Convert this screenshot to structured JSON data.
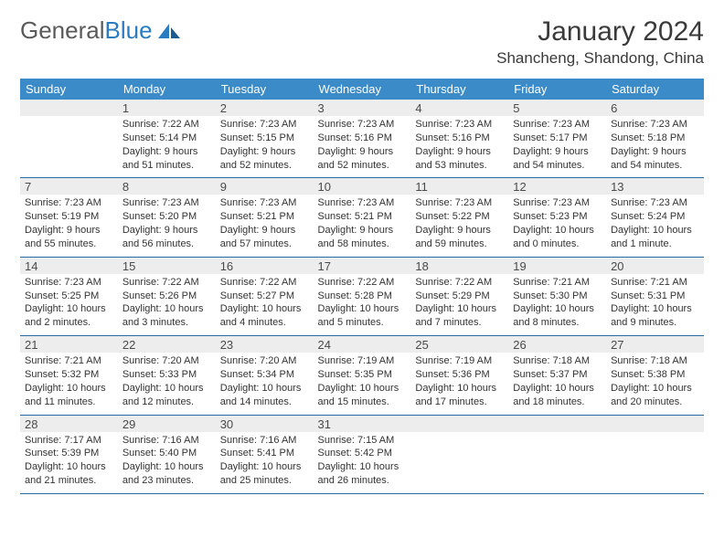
{
  "logo": {
    "text1": "General",
    "text2": "Blue"
  },
  "title": "January 2024",
  "location": "Shancheng, Shandong, China",
  "weekdays": [
    "Sunday",
    "Monday",
    "Tuesday",
    "Wednesday",
    "Thursday",
    "Friday",
    "Saturday"
  ],
  "colors": {
    "header_bg": "#3b8bc8",
    "header_text": "#ffffff",
    "daynum_bg": "#ededed",
    "row_border": "#2a6aa0",
    "logo_gray": "#5a5a5a",
    "logo_blue": "#2a7bbf",
    "text": "#333333"
  },
  "typography": {
    "title_fontsize": 30,
    "location_fontsize": 17,
    "weekday_fontsize": 13,
    "daynum_fontsize": 13,
    "content_fontsize": 11
  },
  "layout": {
    "leading_blanks": 1,
    "columns": 7
  },
  "days": [
    {
      "n": "1",
      "sr": "7:22 AM",
      "ss": "5:14 PM",
      "dl": "9 hours and 51 minutes."
    },
    {
      "n": "2",
      "sr": "7:23 AM",
      "ss": "5:15 PM",
      "dl": "9 hours and 52 minutes."
    },
    {
      "n": "3",
      "sr": "7:23 AM",
      "ss": "5:16 PM",
      "dl": "9 hours and 52 minutes."
    },
    {
      "n": "4",
      "sr": "7:23 AM",
      "ss": "5:16 PM",
      "dl": "9 hours and 53 minutes."
    },
    {
      "n": "5",
      "sr": "7:23 AM",
      "ss": "5:17 PM",
      "dl": "9 hours and 54 minutes."
    },
    {
      "n": "6",
      "sr": "7:23 AM",
      "ss": "5:18 PM",
      "dl": "9 hours and 54 minutes."
    },
    {
      "n": "7",
      "sr": "7:23 AM",
      "ss": "5:19 PM",
      "dl": "9 hours and 55 minutes."
    },
    {
      "n": "8",
      "sr": "7:23 AM",
      "ss": "5:20 PM",
      "dl": "9 hours and 56 minutes."
    },
    {
      "n": "9",
      "sr": "7:23 AM",
      "ss": "5:21 PM",
      "dl": "9 hours and 57 minutes."
    },
    {
      "n": "10",
      "sr": "7:23 AM",
      "ss": "5:21 PM",
      "dl": "9 hours and 58 minutes."
    },
    {
      "n": "11",
      "sr": "7:23 AM",
      "ss": "5:22 PM",
      "dl": "9 hours and 59 minutes."
    },
    {
      "n": "12",
      "sr": "7:23 AM",
      "ss": "5:23 PM",
      "dl": "10 hours and 0 minutes."
    },
    {
      "n": "13",
      "sr": "7:23 AM",
      "ss": "5:24 PM",
      "dl": "10 hours and 1 minute."
    },
    {
      "n": "14",
      "sr": "7:23 AM",
      "ss": "5:25 PM",
      "dl": "10 hours and 2 minutes."
    },
    {
      "n": "15",
      "sr": "7:22 AM",
      "ss": "5:26 PM",
      "dl": "10 hours and 3 minutes."
    },
    {
      "n": "16",
      "sr": "7:22 AM",
      "ss": "5:27 PM",
      "dl": "10 hours and 4 minutes."
    },
    {
      "n": "17",
      "sr": "7:22 AM",
      "ss": "5:28 PM",
      "dl": "10 hours and 5 minutes."
    },
    {
      "n": "18",
      "sr": "7:22 AM",
      "ss": "5:29 PM",
      "dl": "10 hours and 7 minutes."
    },
    {
      "n": "19",
      "sr": "7:21 AM",
      "ss": "5:30 PM",
      "dl": "10 hours and 8 minutes."
    },
    {
      "n": "20",
      "sr": "7:21 AM",
      "ss": "5:31 PM",
      "dl": "10 hours and 9 minutes."
    },
    {
      "n": "21",
      "sr": "7:21 AM",
      "ss": "5:32 PM",
      "dl": "10 hours and 11 minutes."
    },
    {
      "n": "22",
      "sr": "7:20 AM",
      "ss": "5:33 PM",
      "dl": "10 hours and 12 minutes."
    },
    {
      "n": "23",
      "sr": "7:20 AM",
      "ss": "5:34 PM",
      "dl": "10 hours and 14 minutes."
    },
    {
      "n": "24",
      "sr": "7:19 AM",
      "ss": "5:35 PM",
      "dl": "10 hours and 15 minutes."
    },
    {
      "n": "25",
      "sr": "7:19 AM",
      "ss": "5:36 PM",
      "dl": "10 hours and 17 minutes."
    },
    {
      "n": "26",
      "sr": "7:18 AM",
      "ss": "5:37 PM",
      "dl": "10 hours and 18 minutes."
    },
    {
      "n": "27",
      "sr": "7:18 AM",
      "ss": "5:38 PM",
      "dl": "10 hours and 20 minutes."
    },
    {
      "n": "28",
      "sr": "7:17 AM",
      "ss": "5:39 PM",
      "dl": "10 hours and 21 minutes."
    },
    {
      "n": "29",
      "sr": "7:16 AM",
      "ss": "5:40 PM",
      "dl": "10 hours and 23 minutes."
    },
    {
      "n": "30",
      "sr": "7:16 AM",
      "ss": "5:41 PM",
      "dl": "10 hours and 25 minutes."
    },
    {
      "n": "31",
      "sr": "7:15 AM",
      "ss": "5:42 PM",
      "dl": "10 hours and 26 minutes."
    }
  ],
  "labels": {
    "sunrise": "Sunrise:",
    "sunset": "Sunset:",
    "daylight": "Daylight:"
  }
}
